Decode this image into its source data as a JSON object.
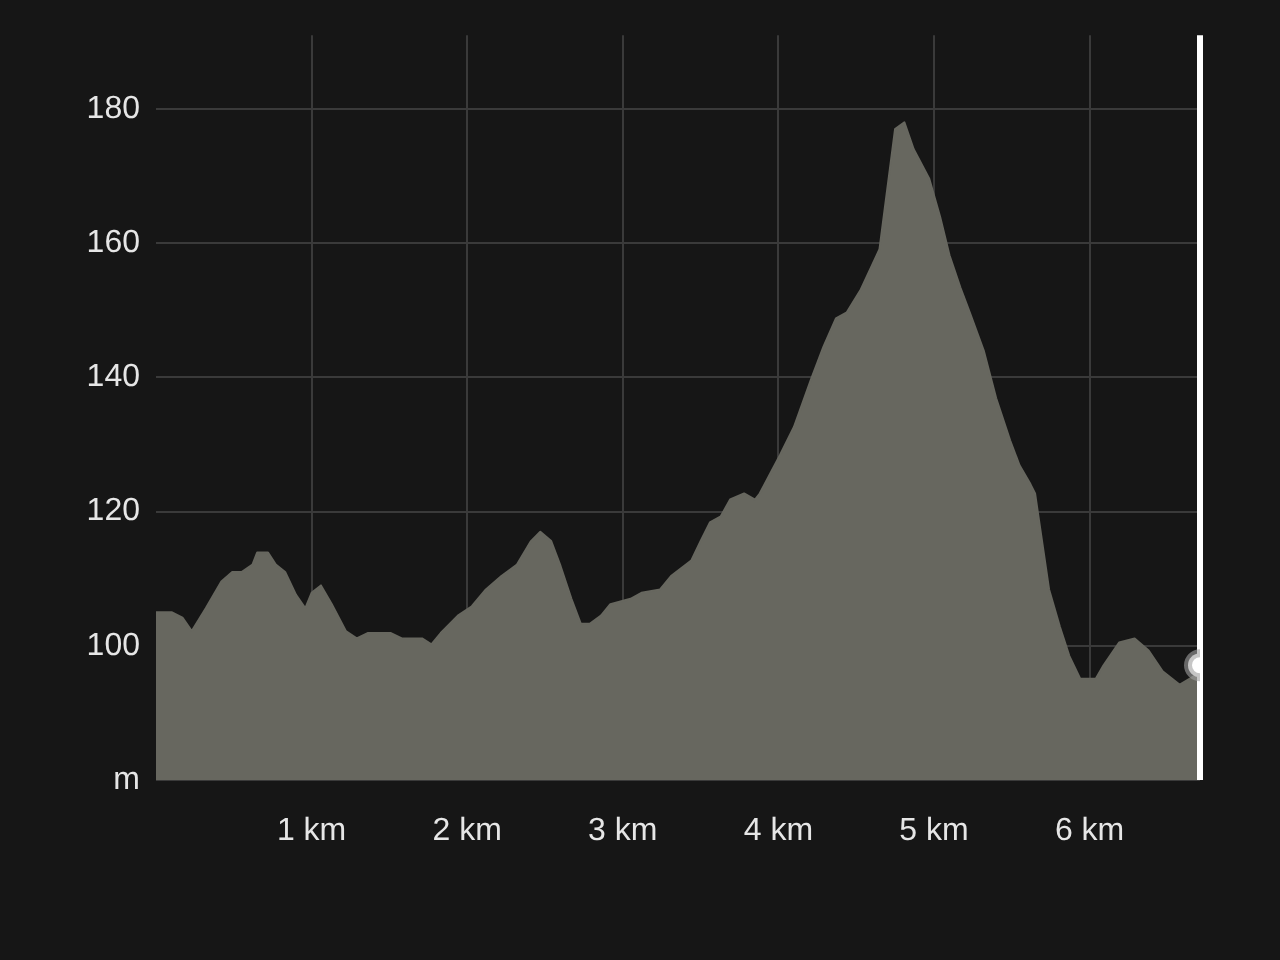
{
  "chart_data": {
    "type": "area",
    "x": [
      0,
      0.1,
      0.17,
      0.23,
      0.32,
      0.42,
      0.49,
      0.55,
      0.62,
      0.65,
      0.72,
      0.77,
      0.83,
      0.9,
      0.96,
      1.0,
      1.06,
      1.13,
      1.22,
      1.29,
      1.36,
      1.51,
      1.58,
      1.71,
      1.77,
      1.83,
      1.94,
      2.03,
      2.12,
      2.22,
      2.32,
      2.41,
      2.47,
      2.54,
      2.6,
      2.67,
      2.73,
      2.79,
      2.86,
      2.92,
      3.05,
      3.12,
      3.24,
      3.31,
      3.44,
      3.5,
      3.56,
      3.63,
      3.69,
      3.78,
      3.85,
      3.88,
      4.01,
      4.1,
      4.21,
      4.29,
      4.37,
      4.44,
      4.53,
      4.65,
      4.75,
      4.81,
      4.87,
      4.97,
      5.04,
      5.1,
      5.17,
      5.23,
      5.32,
      5.4,
      5.49,
      5.55,
      5.62,
      5.65,
      5.74,
      5.81,
      5.87,
      5.94,
      6.04,
      6.09,
      6.19,
      6.29,
      6.38,
      6.47,
      6.58,
      6.68,
      6.71
    ],
    "series": [
      {
        "color": "#67675f",
        "values": [
          105,
          105,
          104.2,
          102.2,
          105.6,
          109.6,
          111,
          111,
          112.1,
          113.9,
          113.9,
          112.1,
          111,
          107.6,
          105.6,
          107.9,
          109,
          106.2,
          102.2,
          101.1,
          101.9,
          101.9,
          101.1,
          101.1,
          100.2,
          101.9,
          104.5,
          105.9,
          108.4,
          110.4,
          112.1,
          115.6,
          117,
          115.6,
          111.9,
          107,
          103.3,
          103.3,
          104.5,
          106.2,
          107,
          107.9,
          108.4,
          110.4,
          112.7,
          115.6,
          118.4,
          119.3,
          121.8,
          122.7,
          121.8,
          122.7,
          128.4,
          132.6,
          139.7,
          144.6,
          148.8,
          149.7,
          153.1,
          159.1,
          177,
          178,
          174,
          169.6,
          163.9,
          158.2,
          153.4,
          149.7,
          144,
          136.9,
          130.6,
          126.9,
          124.1,
          122.7,
          108.4,
          102.8,
          98.5,
          95.1,
          95.1,
          97.1,
          100.5,
          101.1,
          99.3,
          96.2,
          94.2,
          95.6,
          97.1
        ]
      },
      {
        "type": "scatter",
        "x": [
          6.71
        ],
        "values": [
          97.1
        ],
        "color": "#ffffff"
      }
    ],
    "xlim": [
      0,
      6.71
    ],
    "xticks": [
      {
        "value": 1,
        "label": "1 km"
      },
      {
        "value": 2,
        "label": "2 km"
      },
      {
        "value": 3,
        "label": "3 km"
      },
      {
        "value": 4,
        "label": "4 km"
      },
      {
        "value": 5,
        "label": "5 km"
      },
      {
        "value": 6,
        "label": "6 km"
      }
    ],
    "ylim": [
      80,
      191
    ],
    "yticks": [
      {
        "value": 80,
        "label": "m"
      },
      100,
      120,
      140,
      160,
      180
    ],
    "grid": true,
    "ref_lines": [
      {
        "axis": "x",
        "value": 6.71,
        "color": "#ffffff"
      }
    ]
  }
}
